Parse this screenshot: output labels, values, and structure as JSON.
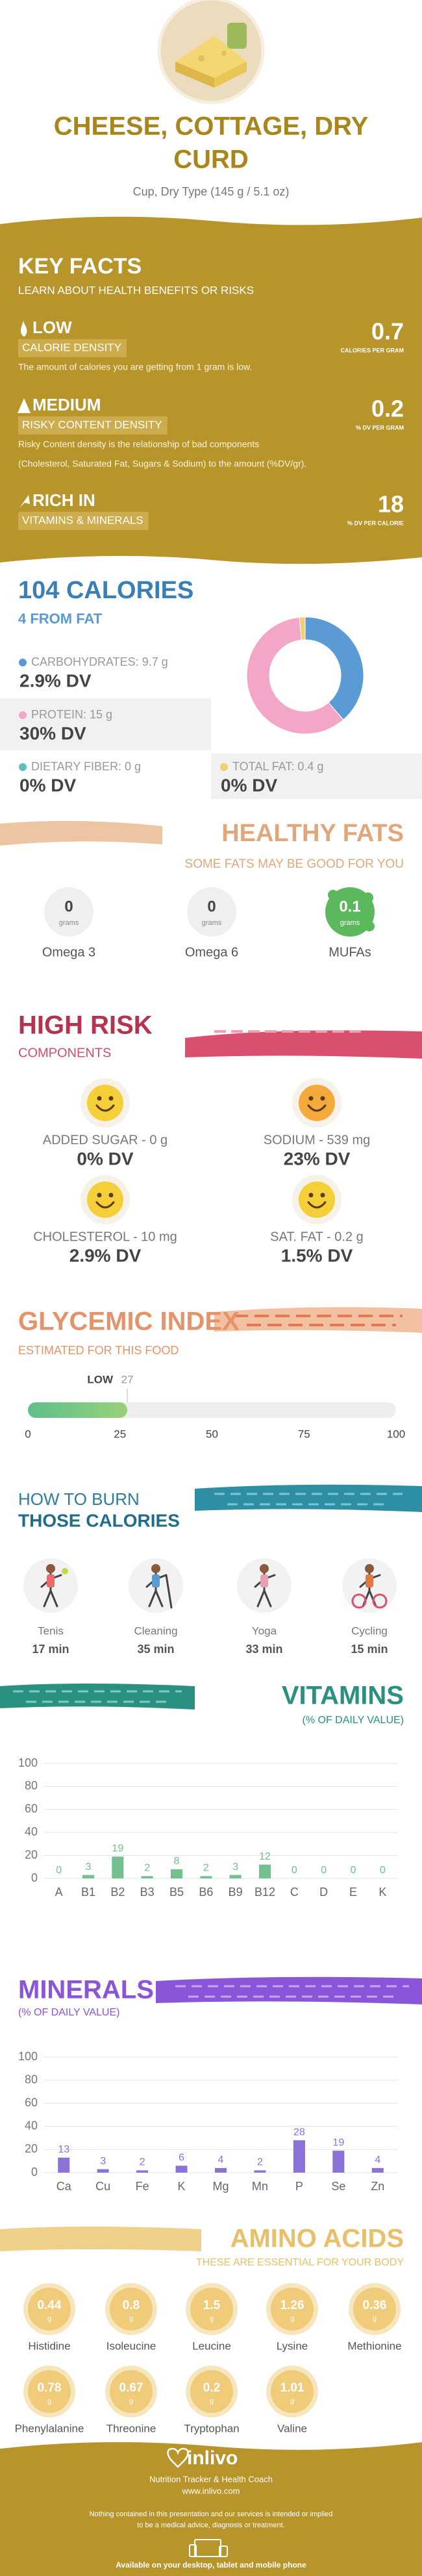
{
  "header": {
    "title_lines": [
      "CHEESE, COTTAGE, DRY",
      "CURD"
    ],
    "subtitle": "Cup, Dry Type (145 g / 5.1 oz)"
  },
  "key_facts": {
    "title": "KEY FACTS",
    "subtitle": "LEARN ABOUT HEALTH BENEFITS OR RISKS",
    "facts": [
      {
        "level": "LOW",
        "label": "CALORIE DENSITY",
        "value": 0.7,
        "unit": "CALORIES PER GRAM",
        "description": [
          "The amount of calories you are getting from 1 gram is low."
        ]
      },
      {
        "level": "MEDIUM",
        "label": "RISKY CONTENT DENSITY",
        "value": 0.2,
        "unit": "% DV PER GRAM",
        "description": [
          "Risky Content density is the relationship of bad components",
          "(Cholesterol, Saturated Fat, Sugars & Sodium) to the amount (%DV/gr)."
        ]
      },
      {
        "level": "RICH  IN",
        "label": "VITAMINS & MINERALS",
        "value": 18,
        "unit": "% DV PER CALORIE",
        "description": []
      }
    ]
  },
  "calories": {
    "title": "104 CALORIES",
    "subtitle": "4 FROM FAT",
    "macros": [
      {
        "label": "CARBOHYDRATES: 9.7 g",
        "value": 9.7,
        "dv": "2.9% DV",
        "color": "#5b9bd5"
      },
      {
        "label": "PROTEIN: 15 g",
        "value": 15,
        "dv": "30% DV",
        "color": "#f4a6c8"
      },
      {
        "label": "DIETARY FIBER: 0 g",
        "value": 0,
        "dv": "0% DV",
        "color": "#5cc0c0"
      },
      {
        "label": "TOTAL FAT: 0.4 g",
        "value": 0.4,
        "dv": "0% DV",
        "color": "#f0d070"
      }
    ]
  },
  "healthy_fats": {
    "title": "HEALTHY FATS",
    "subtitle": "SOME FATS MAY BE GOOD FOR YOU",
    "unit": "grams",
    "items": [
      {
        "name": "Omega 3",
        "value": 0
      },
      {
        "name": "Omega 6",
        "value": 0
      },
      {
        "name": "MUFAs",
        "value": 0.1
      }
    ]
  },
  "high_risk": {
    "title": "HIGH RISK",
    "subtitle": "COMPONENTS",
    "items": [
      {
        "label": "ADDED SUGAR - 0 g",
        "dv": "0% DV"
      },
      {
        "label": "SODIUM - 539 mg",
        "dv": "23% DV"
      },
      {
        "label": "CHOLESTEROL - 10 mg",
        "dv": "2.9% DV"
      },
      {
        "label": "SAT. FAT - 0.2 g",
        "dv": "1.5% DV"
      }
    ]
  },
  "glycemic": {
    "title": "GLYCEMIC INDEX",
    "subtitle": "ESTIMATED FOR THIS FOOD",
    "level": "LOW",
    "value": 27,
    "xlim": [
      0,
      100
    ],
    "xticks": [
      0,
      25,
      50,
      75,
      100
    ]
  },
  "burn": {
    "title": [
      "HOW TO BURN",
      "THOSE CALORIES"
    ],
    "activities": [
      {
        "name": "Tenis",
        "time": "17 min"
      },
      {
        "name": "Cleaning",
        "time": "35 min"
      },
      {
        "name": "Yoga",
        "time": "33 min"
      },
      {
        "name": "Cycling",
        "time": "15 min"
      }
    ]
  },
  "chart_data": [
    {
      "type": "bar",
      "title": "VITAMINS",
      "subtitle": "(% OF DAILY VALUE)",
      "categories": [
        "A",
        "B1",
        "B2",
        "B3",
        "B5",
        "B6",
        "B9",
        "B12",
        "C",
        "D",
        "E",
        "K"
      ],
      "values": [
        0,
        3,
        19,
        2,
        8,
        2,
        3,
        12,
        0,
        0,
        0,
        0
      ],
      "color": "#72c08e",
      "ylim": [
        0,
        100
      ],
      "yticks": [
        0,
        20,
        40,
        60,
        80,
        100
      ],
      "grid": true
    },
    {
      "type": "bar",
      "title": "MINERALS",
      "subtitle": "(% OF DAILY VALUE)",
      "categories": [
        "Ca",
        "Cu",
        "Fe",
        "K",
        "Mg",
        "Mn",
        "P",
        "Se",
        "Zn"
      ],
      "values": [
        13,
        3,
        2,
        6,
        4,
        2,
        28,
        19,
        4
      ],
      "color": "#8a72d8",
      "ylim": [
        0,
        100
      ],
      "yticks": [
        0,
        20,
        40,
        60,
        80,
        100
      ],
      "grid": true
    }
  ],
  "amino_acids": {
    "title": "AMINO ACIDS",
    "subtitle": "THESE ARE ESSENTIAL FOR YOUR BODY",
    "unit": "g",
    "items": [
      {
        "name": "Histidine",
        "value": 0.44
      },
      {
        "name": "Isoleucine",
        "value": 0.8
      },
      {
        "name": "Leucine",
        "value": 1.5
      },
      {
        "name": "Lysine",
        "value": 1.26
      },
      {
        "name": "Methionine",
        "value": 0.36
      },
      {
        "name": "Phenylalanine",
        "value": 0.78
      },
      {
        "name": "Threonine",
        "value": 0.67
      },
      {
        "name": "Tryptophan",
        "value": 0.2
      },
      {
        "name": "Valine",
        "value": 1.01
      }
    ]
  },
  "footer": {
    "brand": "inlivo",
    "tagline": "Nutrition Tracker & Health Coach",
    "url": "www.inlivo.com",
    "disclaimer": [
      "Nothing contained in this presentation and our services is intended or implied",
      "to be a medical advice, diagnosis or treatment."
    ],
    "availability": "Available on your desktop, tablet and mobile phone"
  }
}
